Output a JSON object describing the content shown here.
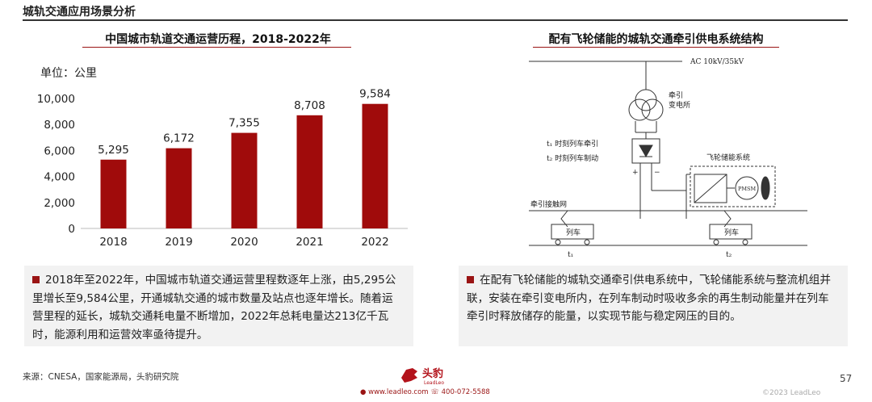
{
  "header": {
    "title": "城轨交通应用场景分析"
  },
  "left_section": {
    "title": "中国城市轨道交通运营历程，2018-2022年",
    "unit_label": "单位：公里",
    "description": "2018年至2022年，中国城市轨道交通运营里程数逐年上涨，由5,295公里增长至9,584公里，开通城轨交通的城市数量及站点也逐年增长。随着运营里程的延长，城轨交通耗电量不断增加，2022年总耗电量达213亿千瓦时，能源利用和运营效率亟待提升。"
  },
  "right_section": {
    "title": "配有飞轮储能的城轨交通牵引供电系统结构",
    "description": "在配有飞轮储能的城轨交通牵引供电系统中，飞轮储能系统与整流机组并联，安装在牵引变电所内，在列车制动时吸收多余的再生制动能量并在列车牵引时释放储存的能量，以实现节能与稳定网压的目的。",
    "diagram": {
      "ac_label": "AC 10kV/35kV",
      "substation_label_1": "牵引",
      "substation_label_2": "变电所",
      "t1_label": "t₁ 时刻列车牵引",
      "t2_label": "t₂ 时刻列车制动",
      "flywheel_label": "飞轮储能系统",
      "pmsm_label": "PMSM",
      "catenary_label": "牵引接触网",
      "train_label": "列车",
      "t1_mark": "t₁",
      "t2_mark": "t₂",
      "plus": "+",
      "minus": "−"
    }
  },
  "chart_data": {
    "type": "bar",
    "title": "中国城市轨道交通运营历程，2018-2022年",
    "ylabel": "单位：公里",
    "categories": [
      "2018",
      "2019",
      "2020",
      "2021",
      "2022"
    ],
    "values": [
      5295,
      6172,
      7355,
      8708,
      9584
    ],
    "value_labels": [
      "5,295",
      "6,172",
      "7,355",
      "8,708",
      "9,584"
    ],
    "yticks": [
      0,
      2000,
      4000,
      6000,
      8000,
      10000
    ],
    "ytick_labels": [
      "0",
      "2,000",
      "4,000",
      "6,000",
      "8,000",
      "10,000"
    ],
    "ylim": [
      0,
      10000
    ],
    "color": "#a00b0b",
    "grid": false
  },
  "footer": {
    "source": "来源：CNESA，国家能源局，头豹研究院",
    "logo_text": "头豹",
    "logo_sub": "LeadLeo",
    "contact": "● www.leadleo.com   ☏ 400-072-5588",
    "copyright": "©2023 LeadLeo",
    "page_number": "57"
  }
}
